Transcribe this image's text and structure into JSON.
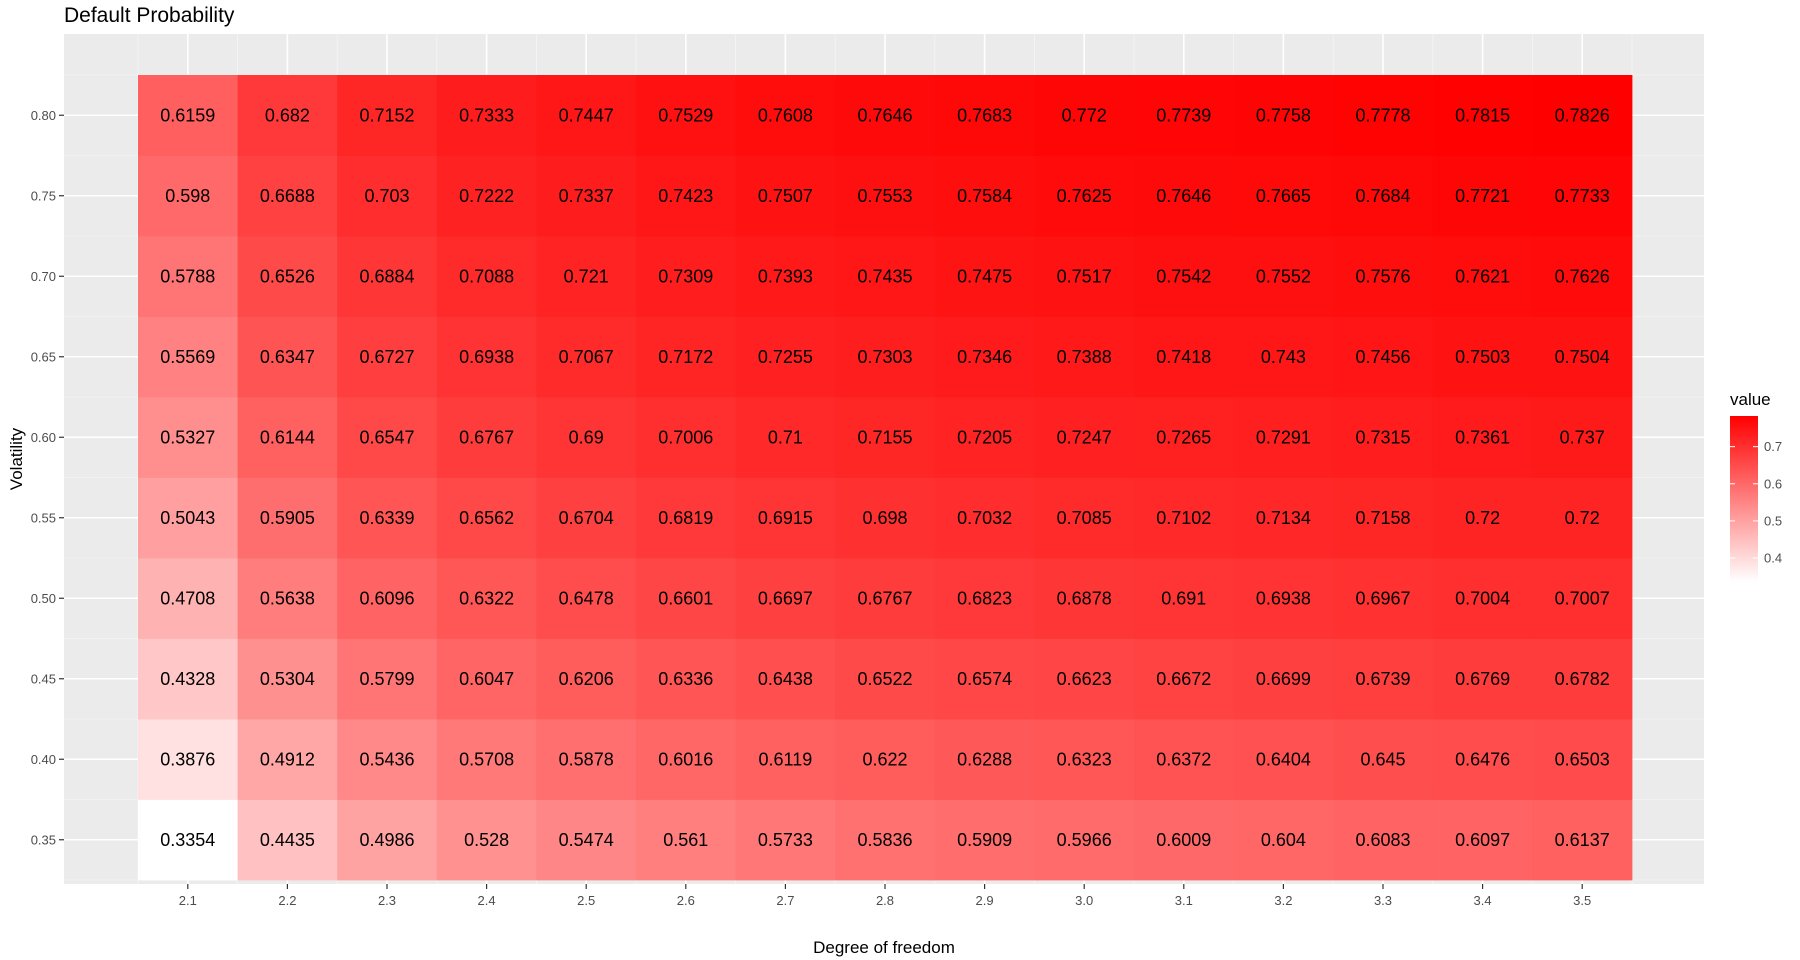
{
  "chart_data": {
    "type": "heatmap",
    "title": "Default Probability",
    "xlabel": "Degree of freedom",
    "ylabel": "Volatility",
    "x": [
      "2.1",
      "2.2",
      "2.3",
      "2.4",
      "2.5",
      "2.6",
      "2.7",
      "2.8",
      "2.9",
      "3.0",
      "3.1",
      "3.2",
      "3.3",
      "3.4",
      "3.5"
    ],
    "y": [
      "0.35",
      "0.40",
      "0.45",
      "0.50",
      "0.55",
      "0.60",
      "0.65",
      "0.70",
      "0.75",
      "0.80"
    ],
    "values": [
      [
        "0.3354",
        "0.4435",
        "0.4986",
        "0.528",
        "0.5474",
        "0.561",
        "0.5733",
        "0.5836",
        "0.5909",
        "0.5966",
        "0.6009",
        "0.604",
        "0.6083",
        "0.6097",
        "0.6137"
      ],
      [
        "0.3876",
        "0.4912",
        "0.5436",
        "0.5708",
        "0.5878",
        "0.6016",
        "0.6119",
        "0.622",
        "0.6288",
        "0.6323",
        "0.6372",
        "0.6404",
        "0.645",
        "0.6476",
        "0.6503"
      ],
      [
        "0.4328",
        "0.5304",
        "0.5799",
        "0.6047",
        "0.6206",
        "0.6336",
        "0.6438",
        "0.6522",
        "0.6574",
        "0.6623",
        "0.6672",
        "0.6699",
        "0.6739",
        "0.6769",
        "0.6782"
      ],
      [
        "0.4708",
        "0.5638",
        "0.6096",
        "0.6322",
        "0.6478",
        "0.6601",
        "0.6697",
        "0.6767",
        "0.6823",
        "0.6878",
        "0.691",
        "0.6938",
        "0.6967",
        "0.7004",
        "0.7007"
      ],
      [
        "0.5043",
        "0.5905",
        "0.6339",
        "0.6562",
        "0.6704",
        "0.6819",
        "0.6915",
        "0.698",
        "0.7032",
        "0.7085",
        "0.7102",
        "0.7134",
        "0.7158",
        "0.72",
        "0.72"
      ],
      [
        "0.5327",
        "0.6144",
        "0.6547",
        "0.6767",
        "0.69",
        "0.7006",
        "0.71",
        "0.7155",
        "0.7205",
        "0.7247",
        "0.7265",
        "0.7291",
        "0.7315",
        "0.7361",
        "0.737"
      ],
      [
        "0.5569",
        "0.6347",
        "0.6727",
        "0.6938",
        "0.7067",
        "0.7172",
        "0.7255",
        "0.7303",
        "0.7346",
        "0.7388",
        "0.7418",
        "0.743",
        "0.7456",
        "0.7503",
        "0.7504"
      ],
      [
        "0.5788",
        "0.6526",
        "0.6884",
        "0.7088",
        "0.721",
        "0.7309",
        "0.7393",
        "0.7435",
        "0.7475",
        "0.7517",
        "0.7542",
        "0.7552",
        "0.7576",
        "0.7621",
        "0.7626"
      ],
      [
        "0.598",
        "0.6688",
        "0.703",
        "0.7222",
        "0.7337",
        "0.7423",
        "0.7507",
        "0.7553",
        "0.7584",
        "0.7625",
        "0.7646",
        "0.7665",
        "0.7684",
        "0.7721",
        "0.7733"
      ],
      [
        "0.6159",
        "0.682",
        "0.7152",
        "0.7333",
        "0.7447",
        "0.7529",
        "0.7608",
        "0.7646",
        "0.7683",
        "0.772",
        "0.7739",
        "0.7758",
        "0.7778",
        "0.7815",
        "0.7826"
      ]
    ],
    "color_scale": {
      "low": "#ffffff",
      "high": "#ff0000",
      "min": 0.3354,
      "max": 0.7826
    },
    "legend": {
      "title": "value",
      "ticks": [
        "0.4",
        "0.5",
        "0.6",
        "0.7"
      ],
      "position": "right"
    },
    "panel_background": "#ebebeb",
    "grid": true
  }
}
